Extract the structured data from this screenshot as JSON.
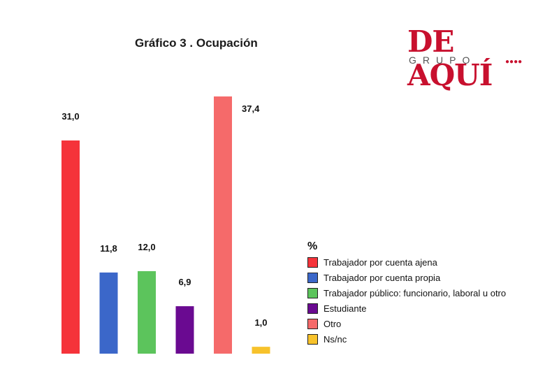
{
  "logo": {
    "main": "DE AQUÍ",
    "sub": "GRUPO",
    "dots": "●●●●"
  },
  "chart_data": {
    "type": "bar",
    "title": "Gráfico 3 . Ocupación",
    "legend_title": "%",
    "legend_position": "right",
    "categories": [
      "Trabajador por cuenta ajena",
      "Trabajador por cuenta propia",
      "Trabajador público: funcionario, laboral u otro",
      "Estudiante",
      "Otro",
      "Ns/nc"
    ],
    "values": [
      31.0,
      11.8,
      12.0,
      6.9,
      37.4,
      1.0
    ],
    "value_labels": [
      "31,0",
      "11,8",
      "12,0",
      "6,9",
      "37,4",
      "1,0"
    ],
    "colors": [
      "#f5333a",
      "#3b67c9",
      "#5cc45c",
      "#6a0a91",
      "#f56a6a",
      "#f7c22b"
    ],
    "ylim": [
      0,
      37.4
    ],
    "grid": false
  }
}
